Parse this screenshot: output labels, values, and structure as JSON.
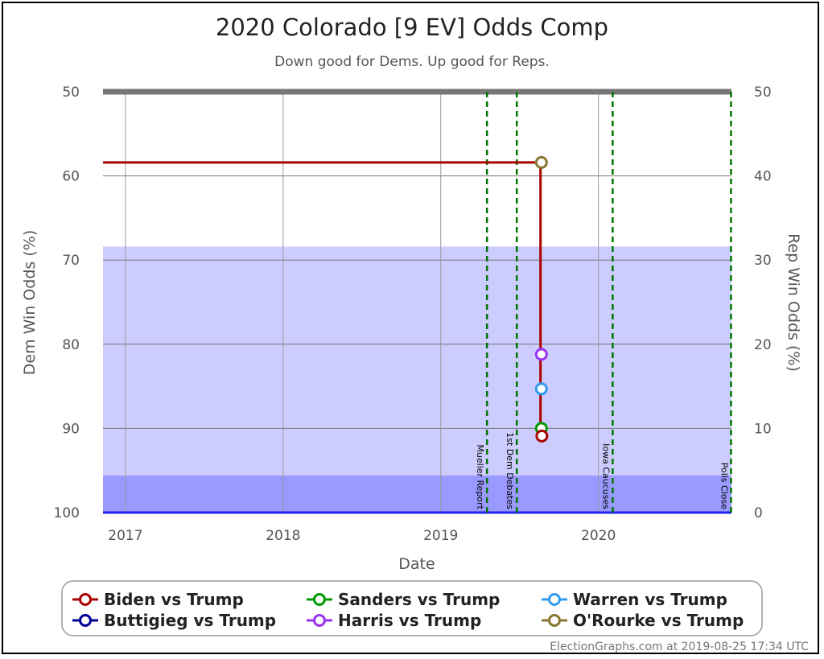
{
  "chart_data": {
    "type": "line",
    "title": "2020 Colorado [9 EV] Odds Comp",
    "subtitle": "Down good for Dems. Up good for Reps.",
    "xlabel": "Date",
    "ylabel_left": "Dem Win Odds (%)",
    "ylabel_right": "Rep Win Odds (%)",
    "xlim": [
      "2016-11-10",
      "2020-11-04"
    ],
    "ylim_left": [
      50,
      100
    ],
    "ylim_right": [
      50,
      0
    ],
    "x_ticks": [
      {
        "date": "2017-01-01",
        "label": "2017"
      },
      {
        "date": "2018-01-01",
        "label": "2018"
      },
      {
        "date": "2019-01-01",
        "label": "2019"
      },
      {
        "date": "2020-01-01",
        "label": "2020"
      }
    ],
    "y_ticks_left": [
      50,
      60,
      70,
      80,
      90,
      100
    ],
    "y_ticks_right": [
      50,
      40,
      30,
      20,
      10,
      0
    ],
    "bands": [
      {
        "from": 68.4,
        "to": 95.6,
        "color": "#ccccff"
      },
      {
        "from": 95.6,
        "to": 100,
        "color": "#9999ff"
      }
    ],
    "events": [
      {
        "date": "2019-04-18",
        "label": "Mueller Report"
      },
      {
        "date": "2019-06-26",
        "label": "1st Dem Debates"
      },
      {
        "date": "2020-02-03",
        "label": "Iowa Caucuses"
      },
      {
        "date": "2020-11-03",
        "label": "Polls Close"
      }
    ],
    "series": [
      {
        "name": "Biden vs Trump",
        "color": "#aa0000",
        "points": [
          [
            "2016-11-10",
            58.4
          ],
          [
            "2019-08-20",
            58.4
          ],
          [
            "2019-08-20",
            90.9
          ]
        ],
        "marker": [
          "2019-08-23",
          90.9
        ]
      },
      {
        "name": "Sanders vs Trump",
        "color": "#009900",
        "points": [],
        "marker": [
          "2019-08-22",
          90.0
        ]
      },
      {
        "name": "Warren vs Trump",
        "color": "#3399ee",
        "points": [],
        "marker": [
          "2019-08-22",
          85.3
        ]
      },
      {
        "name": "Buttigieg vs Trump",
        "color": "#000099",
        "points": [],
        "marker": null
      },
      {
        "name": "Harris vs Trump",
        "color": "#9933ee",
        "points": [],
        "marker": [
          "2019-08-22",
          81.2
        ]
      },
      {
        "name": "O'Rourke vs Trump",
        "color": "#887733",
        "points": [],
        "marker": [
          "2019-08-22",
          58.4
        ]
      }
    ],
    "legend_position": "bottom",
    "grid": true
  },
  "credit": "ElectionGraphs.com at 2019-08-25 17:34 UTC"
}
